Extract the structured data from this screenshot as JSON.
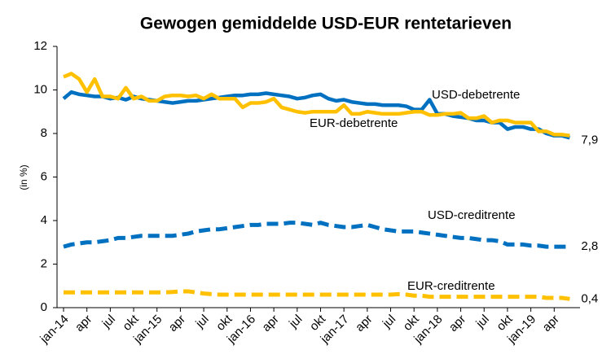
{
  "chart_data": {
    "type": "line",
    "title": "Gewogen gemiddelde USD-EUR rentetarieven",
    "y_label": "(in %)",
    "categories": [
      "jan-14",
      null,
      null,
      "apr",
      null,
      null,
      "jul",
      null,
      null,
      "okt",
      null,
      null,
      "jan-15",
      null,
      null,
      "apr",
      null,
      null,
      "jul",
      null,
      null,
      "okt",
      null,
      null,
      "jan-16",
      null,
      null,
      "apr",
      null,
      null,
      "jul",
      null,
      null,
      "okt",
      null,
      null,
      "jan-17",
      null,
      null,
      "apr",
      null,
      null,
      "jul",
      null,
      null,
      "okt",
      null,
      null,
      "jan-18",
      null,
      null,
      "apr",
      null,
      null,
      "jul",
      null,
      null,
      "okt",
      null,
      null,
      "jan-19",
      null,
      null,
      "apr",
      null,
      null
    ],
    "ylim": [
      0,
      12
    ],
    "yticks": [
      0,
      2,
      4,
      6,
      8,
      10,
      12
    ],
    "grid": false,
    "series": [
      {
        "name": "USD-debetrente",
        "color": "#0070c0",
        "dashed": false,
        "values": [
          9.6,
          9.9,
          9.8,
          9.75,
          9.7,
          9.7,
          9.6,
          9.65,
          9.55,
          9.7,
          9.6,
          9.55,
          9.5,
          9.45,
          9.4,
          9.45,
          9.5,
          9.5,
          9.55,
          9.6,
          9.65,
          9.7,
          9.75,
          9.75,
          9.8,
          9.8,
          9.85,
          9.8,
          9.75,
          9.7,
          9.6,
          9.65,
          9.75,
          9.8,
          9.6,
          9.5,
          9.55,
          9.45,
          9.4,
          9.35,
          9.35,
          9.3,
          9.3,
          9.3,
          9.25,
          9.1,
          9.1,
          9.55,
          8.9,
          8.9,
          8.8,
          8.75,
          8.7,
          8.6,
          8.6,
          8.5,
          8.5,
          8.2,
          8.3,
          8.3,
          8.2,
          8.2,
          8.0,
          7.9,
          7.9,
          7.8
        ]
      },
      {
        "name": "EUR-debetrente",
        "color": "#ffc000",
        "dashed": false,
        "end_label": "7,9",
        "values": [
          10.6,
          10.75,
          10.5,
          9.9,
          10.5,
          9.7,
          9.7,
          9.6,
          10.1,
          9.6,
          9.7,
          9.5,
          9.5,
          9.7,
          9.75,
          9.75,
          9.7,
          9.75,
          9.6,
          9.8,
          9.6,
          9.6,
          9.6,
          9.2,
          9.4,
          9.4,
          9.45,
          9.6,
          9.2,
          9.1,
          9.0,
          8.95,
          9.0,
          9.0,
          9.0,
          9.0,
          9.3,
          8.9,
          8.9,
          9.0,
          8.95,
          8.9,
          8.9,
          8.9,
          8.95,
          9.0,
          9.0,
          8.85,
          8.85,
          8.9,
          8.9,
          8.95,
          8.7,
          8.7,
          8.8,
          8.5,
          8.6,
          8.6,
          8.5,
          8.5,
          8.5,
          8.1,
          8.1,
          7.95,
          7.95,
          7.9
        ]
      },
      {
        "name": "USD-creditrente",
        "color": "#0070c0",
        "dashed": true,
        "end_label": "2,8",
        "values": [
          2.8,
          2.9,
          2.95,
          3.0,
          3.0,
          3.05,
          3.1,
          3.2,
          3.2,
          3.25,
          3.3,
          3.3,
          3.3,
          3.3,
          3.3,
          3.35,
          3.4,
          3.5,
          3.55,
          3.6,
          3.6,
          3.65,
          3.7,
          3.75,
          3.8,
          3.8,
          3.85,
          3.85,
          3.85,
          3.9,
          3.9,
          3.85,
          3.8,
          3.9,
          3.8,
          3.75,
          3.7,
          3.7,
          3.75,
          3.8,
          3.7,
          3.6,
          3.55,
          3.5,
          3.5,
          3.5,
          3.45,
          3.4,
          3.35,
          3.3,
          3.25,
          3.2,
          3.2,
          3.15,
          3.1,
          3.1,
          3.05,
          2.9,
          2.9,
          2.9,
          2.85,
          2.85,
          2.8,
          2.8,
          2.8,
          2.8
        ]
      },
      {
        "name": "EUR-creditrente",
        "color": "#ffc000",
        "dashed": true,
        "end_label": "0,4",
        "values": [
          0.7,
          0.7,
          0.7,
          0.7,
          0.7,
          0.7,
          0.7,
          0.7,
          0.7,
          0.7,
          0.7,
          0.7,
          0.7,
          0.7,
          0.72,
          0.75,
          0.75,
          0.7,
          0.65,
          0.62,
          0.6,
          0.6,
          0.6,
          0.6,
          0.6,
          0.6,
          0.6,
          0.6,
          0.6,
          0.6,
          0.6,
          0.6,
          0.6,
          0.6,
          0.6,
          0.6,
          0.6,
          0.6,
          0.6,
          0.6,
          0.6,
          0.6,
          0.6,
          0.62,
          0.6,
          0.55,
          0.55,
          0.5,
          0.5,
          0.5,
          0.5,
          0.5,
          0.5,
          0.5,
          0.5,
          0.5,
          0.5,
          0.5,
          0.5,
          0.5,
          0.5,
          0.5,
          0.45,
          0.45,
          0.45,
          0.4
        ]
      }
    ]
  }
}
